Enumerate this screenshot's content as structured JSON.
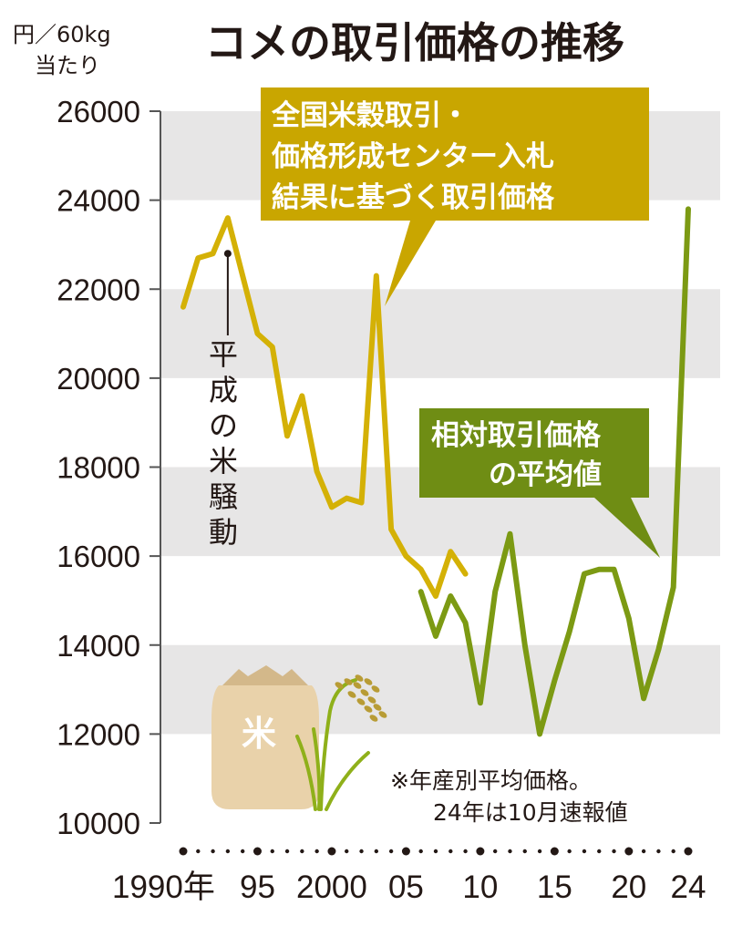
{
  "title": "コメの取引価格の推移",
  "unit": {
    "line1": "円／60kg",
    "line2": "当たり"
  },
  "colors": {
    "series_a": "#d4b106",
    "series_b": "#7c9a13",
    "box_a": "#c9a600",
    "box_b": "#6f8d14",
    "band": "#e7e6e6",
    "bag": "#e9d2aa",
    "bag_dark": "#d3b88a",
    "plant_leaf": "#8fb01a",
    "plant_grain": "#b89c35"
  },
  "box_a": {
    "lines": [
      "全国米穀取引・",
      "価格形成センター入札",
      "結果に基づく取引価格"
    ]
  },
  "box_b": {
    "lines": [
      "相対取引価格",
      "の平均値"
    ]
  },
  "annotation": {
    "text": [
      "平",
      "成",
      "の",
      "米",
      "騒",
      "動"
    ]
  },
  "note": {
    "lines": [
      "※年産別平均価格。",
      "24年は10月速報値"
    ]
  },
  "bag_mark": "米",
  "chart_data": {
    "type": "line",
    "title": "コメの取引価格の推移",
    "ylabel": "円／60kg当たり",
    "ylim": [
      10000,
      26000
    ],
    "xlim": [
      1990,
      2024
    ],
    "yticks": [
      "10000",
      "12000",
      "14000",
      "16000",
      "18000",
      "20000",
      "22000",
      "24000",
      "26000"
    ],
    "xtick_labels": [
      {
        "x": 1990,
        "label": "1990年"
      },
      {
        "x": 1995,
        "label": "95"
      },
      {
        "x": 2000,
        "label": "2000"
      },
      {
        "x": 2005,
        "label": "05"
      },
      {
        "x": 2010,
        "label": "10"
      },
      {
        "x": 2015,
        "label": "15"
      },
      {
        "x": 2020,
        "label": "20"
      },
      {
        "x": 2024,
        "label": "24"
      }
    ],
    "grid": "alternating horizontal bands",
    "series": [
      {
        "key": "a",
        "x": [
          1990,
          1991,
          1992,
          1993,
          1994,
          1995,
          1996,
          1997,
          1998,
          1999,
          2000,
          2001,
          2002,
          2003,
          2004,
          2005,
          2006,
          2007,
          2008,
          2009
        ],
        "values": [
          21600,
          22700,
          22800,
          23600,
          22300,
          21000,
          20700,
          18700,
          19600,
          17900,
          17100,
          17300,
          17200,
          22300,
          16600,
          16000,
          15700,
          15100,
          16100,
          15600
        ]
      },
      {
        "key": "b",
        "x": [
          2006,
          2007,
          2008,
          2009,
          2010,
          2011,
          2012,
          2013,
          2014,
          2015,
          2016,
          2017,
          2018,
          2019,
          2020,
          2021,
          2022,
          2023,
          2024
        ],
        "values": [
          15200,
          14200,
          15100,
          14500,
          12700,
          15200,
          16500,
          14000,
          12000,
          13200,
          14300,
          15600,
          15700,
          15700,
          14600,
          12800,
          13900,
          15300,
          23800
        ]
      }
    ],
    "annotation_point": {
      "x": 1993,
      "y": 22800
    }
  }
}
